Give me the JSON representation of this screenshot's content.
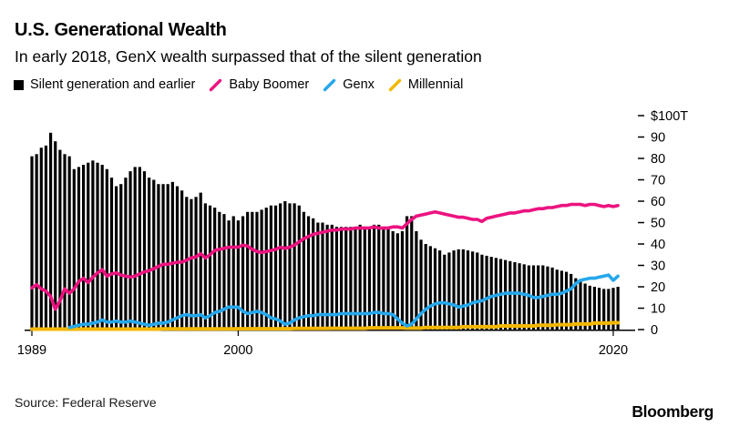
{
  "header": {
    "title": "U.S. Generational Wealth",
    "subtitle": "In early 2018, GenX wealth surpassed that of the silent generation"
  },
  "legend": {
    "items": [
      {
        "label": "Silent generation and earlier",
        "marker": "square",
        "color": "#000000"
      },
      {
        "label": "Baby Boomer",
        "marker": "slash",
        "color": "#EC1380"
      },
      {
        "label": "Genx",
        "marker": "slash",
        "color": "#25A7EB"
      },
      {
        "label": "Millennial",
        "marker": "slash",
        "color": "#F3B700"
      }
    ]
  },
  "footer": {
    "source": "Source: Federal Reserve",
    "brand": "Bloomberg"
  },
  "chart_data": {
    "type": "combo-bar-line",
    "frequency": "quarterly",
    "x_range": [
      1989,
      2020.25
    ],
    "ylim": [
      0,
      100
    ],
    "unit": "trillion USD",
    "y_ticks": [
      0,
      10,
      20,
      30,
      40,
      50,
      60,
      70,
      80,
      90
    ],
    "y_top_label": "$100T",
    "x_ticks": [
      {
        "year": 1989,
        "label": "1989"
      },
      {
        "year": 2000,
        "label": "2000"
      },
      {
        "year": 2020,
        "label": "2020"
      }
    ],
    "grid": false,
    "legend_position": "top",
    "series": [
      {
        "name": "Silent generation and earlier",
        "type": "bar",
        "color": "#000000",
        "start_year": 1989,
        "values": [
          81,
          82,
          85,
          86,
          92,
          88,
          84,
          82,
          81,
          75,
          76,
          77,
          78,
          79,
          78,
          77,
          75,
          71,
          67,
          68,
          71,
          74,
          76,
          76,
          74,
          71,
          70,
          68,
          68,
          68,
          69,
          67,
          65,
          62,
          61,
          62,
          64,
          59,
          58,
          57,
          55,
          54,
          51,
          53,
          51,
          53,
          55,
          55,
          55,
          56,
          57,
          58,
          58,
          59,
          60,
          59,
          59,
          58,
          55,
          53,
          52,
          50,
          50,
          49,
          49,
          48,
          48,
          48,
          48,
          48,
          49,
          48,
          48,
          49,
          49,
          48,
          47,
          46,
          45,
          46,
          53,
          53,
          46,
          42,
          40,
          39,
          38,
          37,
          35,
          36,
          37,
          37.5,
          37.5,
          37,
          36.5,
          36,
          35,
          34.5,
          34,
          33.5,
          33,
          32.5,
          32,
          31.5,
          31,
          30.5,
          30,
          30,
          30,
          30,
          29.5,
          29,
          28,
          27.5,
          27,
          26,
          24,
          23,
          21.5,
          20.5,
          20,
          19.5,
          19,
          19,
          19.5,
          20
        ]
      },
      {
        "name": "Baby Boomer",
        "type": "line",
        "color": "#EC1380",
        "start_year": 1989,
        "values": [
          19.5,
          21,
          19,
          18,
          15.5,
          9.5,
          13.5,
          19,
          17,
          19,
          22.5,
          24,
          22,
          24.5,
          26.5,
          28,
          25,
          26,
          26.5,
          25.5,
          25,
          24.5,
          25,
          26,
          27,
          27.5,
          28.5,
          29.5,
          30.5,
          30.5,
          31,
          31.5,
          31.5,
          32.5,
          33.5,
          34,
          35.5,
          33.5,
          35,
          37,
          37.5,
          38,
          38.5,
          38.5,
          38.5,
          39.5,
          39,
          37.5,
          36.5,
          36,
          36.5,
          37,
          37.5,
          38.5,
          38,
          38.5,
          39.5,
          41,
          42.5,
          43.5,
          44.5,
          45,
          45.5,
          46,
          46.5,
          46.5,
          47,
          47,
          47,
          47.5,
          47.5,
          47.5,
          47.5,
          48,
          47.5,
          47.5,
          47.5,
          48,
          48,
          47.5,
          49.5,
          51.5,
          53,
          53.5,
          54,
          54.5,
          55,
          54.5,
          54,
          53.5,
          53,
          52.5,
          52.5,
          52,
          51.5,
          51.5,
          50.5,
          52,
          52.5,
          53,
          53.5,
          54,
          54.5,
          54.5,
          55,
          55.5,
          55.5,
          56,
          56.5,
          56.5,
          57,
          57,
          57.5,
          58,
          58,
          58.5,
          58.5,
          58.5,
          58,
          58.5,
          58.5,
          58,
          57.5,
          58,
          57.5,
          58
        ]
      },
      {
        "name": "Genx",
        "type": "line",
        "color": "#25A7EB",
        "start_year": 1991,
        "values": [
          1,
          1.5,
          2,
          2.5,
          2.5,
          3,
          3.5,
          4.5,
          3.5,
          3.5,
          4,
          3.5,
          3.5,
          4,
          3.5,
          3,
          2.5,
          2,
          2.5,
          3,
          3,
          3.5,
          4.5,
          5.5,
          6.5,
          7,
          6.5,
          6.5,
          7,
          5.5,
          6.5,
          8,
          8.5,
          9.5,
          10.5,
          10.5,
          10.5,
          8.5,
          7.5,
          8,
          8.5,
          8,
          7,
          5.5,
          5,
          4,
          2.5,
          3,
          4.5,
          5.5,
          6,
          6.5,
          6.5,
          7,
          7,
          7,
          7,
          7,
          7.5,
          7.5,
          7.5,
          7.5,
          7.5,
          7.5,
          7.5,
          8,
          8,
          7.5,
          7.5,
          7,
          5,
          3,
          1.7,
          2.5,
          5,
          7.5,
          9.5,
          11,
          12,
          12.5,
          12.5,
          12,
          11.5,
          10.5,
          11,
          11.5,
          12.5,
          13,
          13.5,
          14.5,
          15.5,
          16,
          16.5,
          17,
          17,
          17,
          17,
          16.5,
          16,
          15,
          15,
          15.5,
          16,
          16.5,
          16.5,
          17,
          18,
          19,
          21.5,
          23,
          23.5,
          24,
          24,
          24.5,
          25,
          25.5,
          23,
          25
        ]
      },
      {
        "name": "Millennial",
        "type": "line",
        "color": "#F3B700",
        "start_year": 1989,
        "values": [
          0.2,
          0.2,
          0.2,
          0.2,
          0.2,
          0.2,
          0.2,
          0.2,
          0.2,
          0.2,
          0.2,
          0.2,
          0.2,
          0.2,
          0.2,
          0.2,
          0.2,
          0.2,
          0.2,
          0.2,
          0.2,
          0.2,
          0.2,
          0.2,
          0.2,
          0.2,
          0.2,
          0.2,
          0.3,
          0.3,
          0.3,
          0.3,
          0.3,
          0.3,
          0.3,
          0.3,
          0.3,
          0.3,
          0.3,
          0.3,
          0.3,
          0.3,
          0.3,
          0.3,
          0.4,
          0.4,
          0.4,
          0.4,
          0.4,
          0.4,
          0.4,
          0.4,
          0.4,
          0.4,
          0.4,
          0.4,
          0.5,
          0.5,
          0.5,
          0.5,
          0.5,
          0.5,
          0.5,
          0.5,
          0.6,
          0.6,
          0.6,
          0.6,
          0.6,
          0.6,
          0.6,
          0.6,
          0.8,
          0.8,
          0.8,
          0.8,
          0.8,
          0.8,
          0.8,
          0.8,
          0.7,
          0.7,
          0.7,
          0.7,
          1,
          1,
          1,
          1,
          1,
          1,
          1,
          1,
          1.3,
          1.3,
          1.3,
          1.3,
          1.3,
          1.3,
          1.3,
          1.3,
          1.7,
          1.7,
          1.7,
          1.7,
          1.7,
          1.7,
          1.7,
          1.7,
          2,
          2,
          2,
          2,
          2.3,
          2.3,
          2.3,
          2.3,
          2.6,
          2.6,
          2.6,
          2.6,
          3,
          3,
          3,
          3,
          3.2,
          3.2
        ]
      }
    ]
  }
}
